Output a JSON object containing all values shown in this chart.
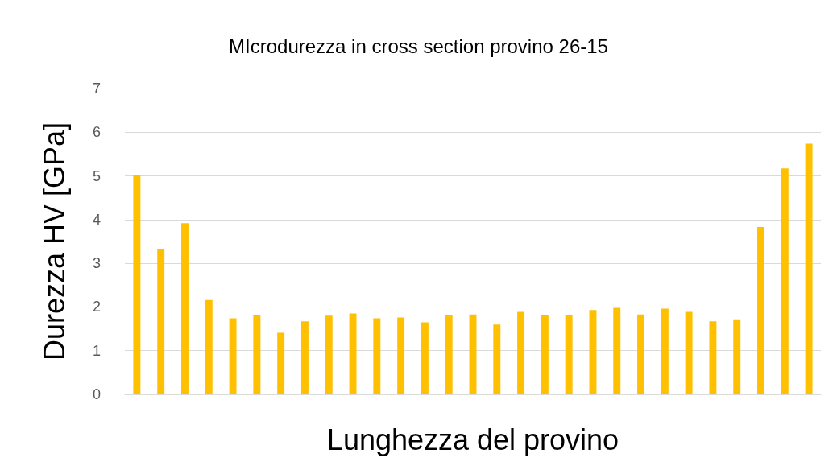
{
  "chart_data": {
    "type": "bar",
    "title": "MIcrodurezza in cross section provino 26-15",
    "xlabel": "Lunghezza del provino",
    "ylabel": "Durezza HV [GPa]",
    "categories": [
      null,
      null,
      null,
      null,
      null,
      null,
      null,
      null,
      null,
      null,
      null,
      null,
      null,
      null,
      null,
      null,
      null,
      null,
      null,
      null,
      null,
      null,
      null,
      null,
      null,
      null,
      null,
      null,
      null
    ],
    "values": [
      5.02,
      3.32,
      3.92,
      2.16,
      1.74,
      1.82,
      1.41,
      1.67,
      1.8,
      1.85,
      1.74,
      1.76,
      1.65,
      1.82,
      1.83,
      1.6,
      1.89,
      1.82,
      1.82,
      1.93,
      1.98,
      1.83,
      1.96,
      1.89,
      1.67,
      1.72,
      3.83,
      5.17,
      5.74
    ],
    "color": "#ffc000",
    "ylim": [
      0,
      7
    ],
    "yticks": [
      0,
      1,
      2,
      3,
      4,
      5,
      6,
      7
    ],
    "grid": "y"
  }
}
